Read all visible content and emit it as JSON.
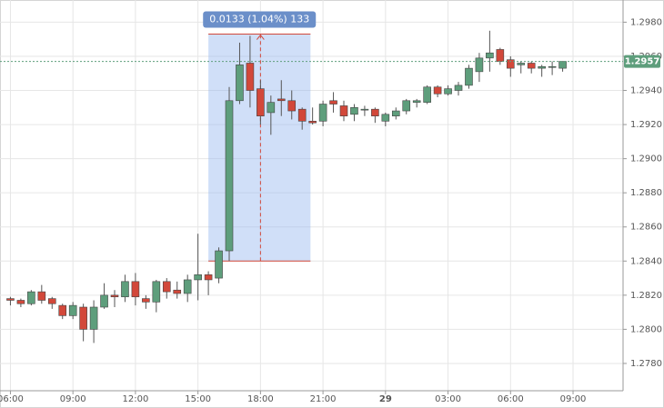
{
  "chart_data": {
    "type": "candlestick",
    "x": [
      6,
      6.5,
      7,
      7.5,
      8,
      8.5,
      9,
      9.5,
      10,
      10.5,
      11,
      11.5,
      12,
      12.5,
      13,
      13.5,
      14,
      14.5,
      15,
      15.5,
      16,
      16.5,
      17,
      17.5,
      18,
      18.5,
      19,
      19.5,
      20,
      20.5,
      21,
      21.5,
      22,
      22.5,
      23,
      23.5,
      24,
      24.5,
      25,
      25.5,
      26,
      26.5,
      27,
      27.5,
      28,
      28.5,
      29,
      29.5,
      30,
      30.5,
      31,
      31.5,
      32,
      32.5
    ],
    "open": [
      1.2818,
      1.2817,
      1.2815,
      1.2822,
      1.2818,
      1.2814,
      1.2808,
      1.2813,
      1.28,
      1.2813,
      1.282,
      1.2819,
      1.2828,
      1.2818,
      1.2816,
      1.2828,
      1.2823,
      1.2821,
      1.2829,
      1.2832,
      1.283,
      1.2846,
      1.2934,
      1.2956,
      1.2941,
      1.2927,
      1.2935,
      1.2934,
      1.2929,
      1.2922,
      1.2922,
      1.2934,
      1.2931,
      1.2926,
      1.2929,
      1.2929,
      1.2922,
      1.2925,
      1.2928,
      1.2933,
      1.2933,
      1.2942,
      1.2938,
      1.294,
      1.2943,
      1.2951,
      1.2959,
      1.2964,
      1.2958,
      1.2955,
      1.2956,
      1.2953,
      1.2954,
      1.2953
    ],
    "high": [
      1.2819,
      1.2818,
      1.2823,
      1.2826,
      1.2819,
      1.2815,
      1.2816,
      1.2815,
      1.2817,
      1.2827,
      1.2823,
      1.2832,
      1.2833,
      1.282,
      1.2829,
      1.283,
      1.2828,
      1.2832,
      1.2856,
      1.2834,
      1.2848,
      1.2942,
      1.2968,
      1.2972,
      1.2946,
      1.2937,
      1.2946,
      1.294,
      1.293,
      1.293,
      1.2934,
      1.2939,
      1.2934,
      1.2932,
      1.2931,
      1.293,
      1.2927,
      1.293,
      1.2935,
      1.2935,
      1.2943,
      1.2943,
      1.2943,
      1.2945,
      1.2955,
      1.2962,
      1.2975,
      1.2965,
      1.296,
      1.2957,
      1.2957,
      1.2955,
      1.2957,
      1.2957
    ],
    "low": [
      1.2814,
      1.2813,
      1.2814,
      1.2815,
      1.2812,
      1.2806,
      1.2806,
      1.2793,
      1.2792,
      1.2812,
      1.2813,
      1.2816,
      1.2814,
      1.2812,
      1.281,
      1.2818,
      1.2818,
      1.2816,
      1.2817,
      1.282,
      1.2827,
      1.284,
      1.2932,
      1.293,
      1.292,
      1.2914,
      1.2925,
      1.2923,
      1.2917,
      1.292,
      1.2919,
      1.2927,
      1.2922,
      1.2922,
      1.2925,
      1.2921,
      1.2919,
      1.2923,
      1.2926,
      1.293,
      1.2932,
      1.2936,
      1.2937,
      1.2937,
      1.2941,
      1.2945,
      1.2951,
      1.2955,
      1.2948,
      1.295,
      1.295,
      1.2948,
      1.2949,
      1.2951
    ],
    "close": [
      1.2817,
      1.2815,
      1.2822,
      1.2817,
      1.2815,
      1.2808,
      1.2814,
      1.28,
      1.2813,
      1.282,
      1.2819,
      1.2828,
      1.2819,
      1.2816,
      1.2828,
      1.2822,
      1.2821,
      1.2829,
      1.2832,
      1.2829,
      1.2846,
      1.2934,
      1.2955,
      1.294,
      1.2925,
      1.2933,
      1.2934,
      1.2928,
      1.2922,
      1.2921,
      1.2932,
      1.2932,
      1.2925,
      1.293,
      1.2929,
      1.2925,
      1.2926,
      1.2928,
      1.2934,
      1.2934,
      1.2942,
      1.2938,
      1.2941,
      1.2943,
      1.2953,
      1.2959,
      1.2962,
      1.2957,
      1.2953,
      1.2956,
      1.2953,
      1.2954,
      1.2954,
      1.2957
    ],
    "up_color": "#5e9e7c",
    "down_color": "#d2483a",
    "xlim": [
      5.5,
      35.4
    ],
    "ylim": [
      1.2764,
      1.2993
    ],
    "xticks": [
      {
        "value": 6,
        "label": "06:00"
      },
      {
        "value": 9,
        "label": "09:00"
      },
      {
        "value": 12,
        "label": "12:00"
      },
      {
        "value": 15,
        "label": "15:00"
      },
      {
        "value": 18,
        "label": "18:00"
      },
      {
        "value": 21,
        "label": "21:00"
      },
      {
        "value": 24,
        "label": "29"
      },
      {
        "value": 27,
        "label": "03:00"
      },
      {
        "value": 30,
        "label": "06:00"
      },
      {
        "value": 33,
        "label": "09:00"
      }
    ],
    "yticks": [
      {
        "value": 1.278,
        "label": "1.2780"
      },
      {
        "value": 1.28,
        "label": "1.2800"
      },
      {
        "value": 1.282,
        "label": "1.2820"
      },
      {
        "value": 1.284,
        "label": "1.2840"
      },
      {
        "value": 1.286,
        "label": "1.2860"
      },
      {
        "value": 1.288,
        "label": "1.2880"
      },
      {
        "value": 1.29,
        "label": "1.2900"
      },
      {
        "value": 1.292,
        "label": "1.2920"
      },
      {
        "value": 1.294,
        "label": "1.2940"
      },
      {
        "value": 1.296,
        "label": "1.2960"
      },
      {
        "value": 1.298,
        "label": "1.2980"
      }
    ],
    "grid": true,
    "last_price": 1.2957,
    "measure": {
      "label": "0.0133 (1.04%) 133",
      "from": 1.284,
      "to": 1.2973,
      "x_start": 15.5,
      "x_end": 20.4,
      "x_arrow": 18
    }
  }
}
